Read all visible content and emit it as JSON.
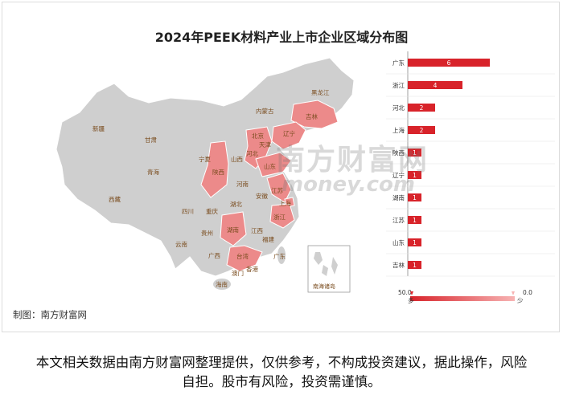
{
  "colors": {
    "map_gray": "#cfcfcf",
    "map_highlight": "#ec8a8a",
    "bar": "#d8232a",
    "legend_start": "#d8232a",
    "legend_end": "#f7b3b3"
  },
  "chart_data": {
    "type": "bar",
    "title": "2024年PEEK材料产业上市企业区域分布图",
    "categories": [
      "广东",
      "浙江",
      "河北",
      "上海",
      "陕西",
      "辽宁",
      "湖南",
      "江苏",
      "山东",
      "吉林"
    ],
    "values": [
      6,
      4,
      2,
      2,
      1,
      1,
      1,
      1,
      1,
      1
    ],
    "legend": {
      "max_label": "50.0",
      "min_label": "0.0",
      "high_text": "多",
      "low_text": "少"
    }
  },
  "map": {
    "regions": [
      "新疆",
      "西藏",
      "青海",
      "甘肃",
      "内蒙古",
      "黑龙江",
      "吉林",
      "辽宁",
      "北京",
      "天津",
      "河北",
      "山西",
      "宁夏",
      "陕西",
      "河南",
      "山东",
      "江苏",
      "安徽",
      "上海",
      "湖北",
      "四川",
      "重庆",
      "浙江",
      "湖南",
      "江西",
      "贵州",
      "福建",
      "云南",
      "广西",
      "广东",
      "台湾",
      "香港",
      "澳门",
      "海南"
    ],
    "inset_label": "南海诸岛"
  },
  "credit": "制图：南方财富网",
  "watermark": {
    "line1": "南方财富网",
    "line2": "money.com"
  },
  "footer": "本文相关数据由南方财富网整理提供，仅供参考，不构成投资建议，据此操作，风险自担。股市有风险，投资需谨慎。"
}
